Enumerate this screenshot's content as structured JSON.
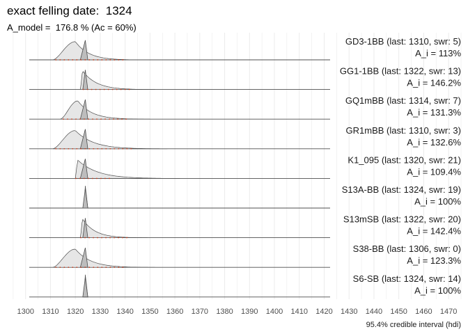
{
  "header": {
    "title": "exact felling date:  1324",
    "subtitle": "A_model =  176.8 % (Ac = 60%)"
  },
  "chart_data": {
    "type": "area",
    "title": "exact felling date:  1324",
    "subtitle": "A_model =  176.8 % (Ac = 60%)",
    "xlabel": "",
    "ylabel": "",
    "caption": "95.4% credible interval (hdi)",
    "xlim": [
      1297,
      1475
    ],
    "x_ticks": [
      1300,
      1310,
      1320,
      1330,
      1340,
      1350,
      1360,
      1370,
      1380,
      1390,
      1400,
      1410,
      1420,
      1430,
      1440,
      1450,
      1460,
      1470
    ],
    "grid": true,
    "colors": {
      "prior_fill": "#e6e6e6",
      "posterior_fill": "#bdbdbd",
      "outline": "#4d4d4d",
      "hdi": "#cc3311",
      "grid": "#ebebeb"
    },
    "felling_date": 1324,
    "series": [
      {
        "name": "GD3-1BB",
        "last": 1310,
        "swr": 5,
        "label": "GD3-1BB (last: 1310, swr: 5)",
        "agreement": "A_i = 113%",
        "prior": {
          "start": 1311,
          "peak": 1320,
          "end": 1348
        },
        "posterior": {
          "start": 1322,
          "peak": 1324,
          "end": 1325
        },
        "hdi": [
          1312,
          1340
        ]
      },
      {
        "name": "GG1-1BB",
        "last": 1322,
        "swr": 13,
        "label": "GG1-1BB (last: 1322, swr: 13)",
        "agreement": "A_i = 146.2%",
        "prior": {
          "start": 1322,
          "peak": 1323,
          "end": 1352
        },
        "posterior": {
          "start": 1323,
          "peak": 1324,
          "end": 1325
        },
        "hdi": [
          1323,
          1343
        ]
      },
      {
        "name": "GQ1mBB",
        "last": 1314,
        "swr": 7,
        "label": "GQ1mBB (last: 1314, swr: 7)",
        "agreement": "A_i = 131.3%",
        "prior": {
          "start": 1314,
          "peak": 1321,
          "end": 1350
        },
        "posterior": {
          "start": 1322,
          "peak": 1324,
          "end": 1325
        },
        "hdi": [
          1315,
          1341
        ]
      },
      {
        "name": "GR1mBB",
        "last": 1310,
        "swr": 3,
        "label": "GR1mBB (last: 1310, swr: 3)",
        "agreement": "A_i = 132.6%",
        "prior": {
          "start": 1311,
          "peak": 1320,
          "end": 1357
        },
        "posterior": {
          "start": 1322,
          "peak": 1324,
          "end": 1325
        },
        "hdi": [
          1312,
          1343
        ]
      },
      {
        "name": "K1_095",
        "last": 1320,
        "swr": 21,
        "label": "K1_095 (last: 1320, swr: 21)",
        "agreement": "A_i = 109.4%",
        "prior": {
          "start": 1320,
          "peak": 1321,
          "end": 1362
        },
        "posterior": {
          "start": 1322,
          "peak": 1324,
          "end": 1325
        },
        "hdi": [
          1320,
          1334
        ]
      },
      {
        "name": "S13A-BB",
        "last": 1324,
        "swr": 19,
        "label": "S13A-BB (last: 1324, swr: 19)",
        "agreement": "A_i = 100%",
        "prior": {
          "start": 1323.5,
          "peak": 1324,
          "end": 1325
        },
        "posterior": {
          "start": 1323,
          "peak": 1324,
          "end": 1325
        },
        "hdi": [
          1324,
          1324
        ]
      },
      {
        "name": "S13mSB",
        "last": 1322,
        "swr": 20,
        "label": "S13mSB (last: 1322, swr: 20)",
        "agreement": "A_i = 142.4%",
        "prior": {
          "start": 1322,
          "peak": 1323,
          "end": 1349
        },
        "posterior": {
          "start": 1323,
          "peak": 1324,
          "end": 1325
        },
        "hdi": [
          1322,
          1342
        ]
      },
      {
        "name": "S38-BB",
        "last": 1306,
        "swr": 0,
        "label": "S38-BB (last: 1306, swr: 0)",
        "agreement": "A_i = 123.3%",
        "prior": {
          "start": 1311,
          "peak": 1320,
          "end": 1352
        },
        "posterior": {
          "start": 1322,
          "peak": 1324,
          "end": 1325
        },
        "hdi": [
          1312,
          1340
        ]
      },
      {
        "name": "S6-SB",
        "last": 1324,
        "swr": 14,
        "label": "S6-SB (last: 1324, swr: 14)",
        "agreement": "A_i = 100%",
        "prior": {
          "start": 1323.5,
          "peak": 1324,
          "end": 1325
        },
        "posterior": {
          "start": 1323,
          "peak": 1324,
          "end": 1325
        },
        "hdi": [
          1324,
          1324
        ]
      }
    ]
  }
}
